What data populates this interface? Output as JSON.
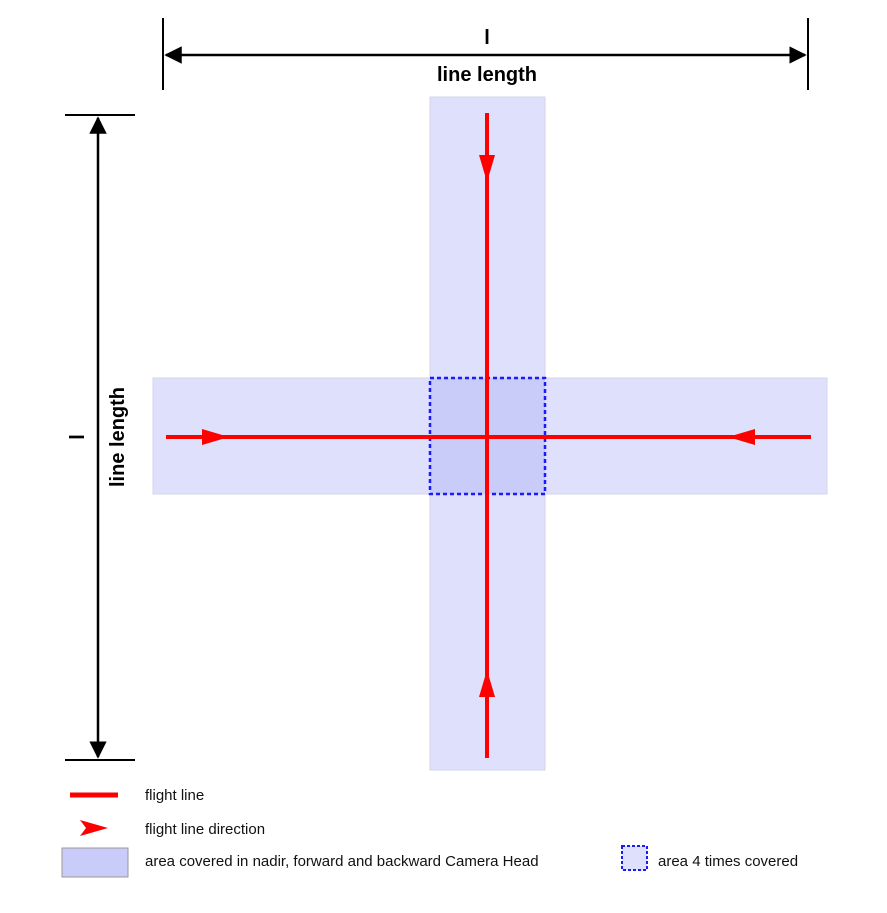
{
  "top_dimension": {
    "symbol": "l",
    "label": "line length"
  },
  "left_dimension": {
    "symbol": "l",
    "label": "line length"
  },
  "legend": [
    {
      "key": "flight_line",
      "label": "flight line"
    },
    {
      "key": "flight_line_direction",
      "label": "flight line direction"
    },
    {
      "key": "coverage_area",
      "label": "area covered in nadir, forward and backward Camera Head"
    },
    {
      "key": "overlap_area",
      "label": "area 4 times covered"
    }
  ],
  "colors": {
    "flight_line": "#ff0000",
    "coverage": "#dfe0fb",
    "overlap": "#c9cbf8",
    "overlap_border": "#1a1aff",
    "dimension": "#000000"
  }
}
